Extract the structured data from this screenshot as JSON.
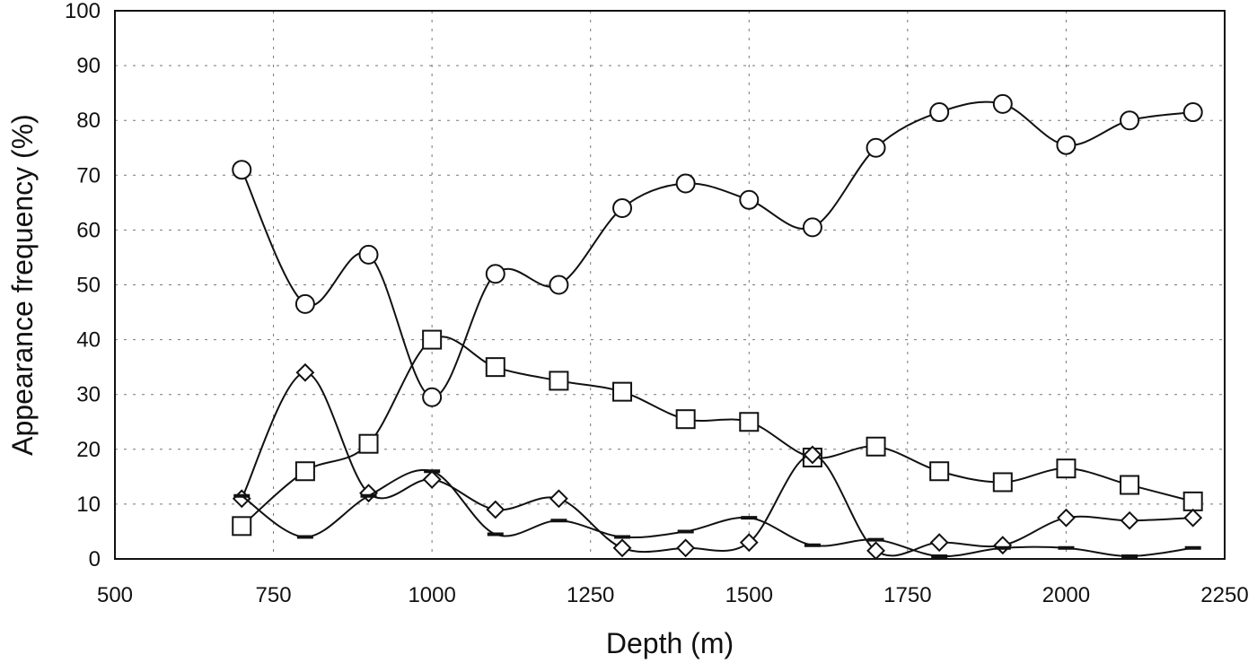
{
  "chart_data": {
    "type": "line",
    "xlabel": "Depth (m)",
    "ylabel": "Appearance frequency (%)",
    "xlim": [
      500,
      2250
    ],
    "ylim": [
      0,
      100
    ],
    "xticks": [
      500,
      750,
      1000,
      1250,
      1500,
      1750,
      2000,
      2250
    ],
    "yticks": [
      0,
      10,
      20,
      30,
      40,
      50,
      60,
      70,
      80,
      90,
      100
    ],
    "grid": true,
    "series": [
      {
        "marker": "circle",
        "x": [
          700,
          800,
          900,
          1000,
          1100,
          1200,
          1300,
          1400,
          1500,
          1600,
          1700,
          1800,
          1900,
          2000,
          2100,
          2200
        ],
        "values": [
          71,
          46.5,
          55.5,
          29.5,
          52,
          50,
          64,
          68.5,
          65.5,
          60.5,
          75,
          81.5,
          83,
          75.5,
          80,
          81.5
        ]
      },
      {
        "marker": "square",
        "x": [
          700,
          800,
          900,
          1000,
          1100,
          1200,
          1300,
          1400,
          1500,
          1600,
          1700,
          1800,
          1900,
          2000,
          2100,
          2200
        ],
        "values": [
          6,
          16,
          21,
          40,
          35,
          32.5,
          30.5,
          25.5,
          25,
          18.5,
          20.5,
          16,
          14,
          16.5,
          13.5,
          10.5
        ]
      },
      {
        "marker": "diamond",
        "x": [
          700,
          800,
          900,
          1000,
          1100,
          1200,
          1300,
          1400,
          1500,
          1600,
          1700,
          1800,
          1900,
          2000,
          2100,
          2200
        ],
        "values": [
          11,
          34,
          12,
          14.5,
          9,
          11,
          2,
          2,
          3,
          19,
          1.5,
          3,
          2.5,
          7.5,
          7,
          7.5
        ]
      },
      {
        "marker": "dash",
        "x": [
          700,
          800,
          900,
          1000,
          1100,
          1200,
          1300,
          1400,
          1500,
          1600,
          1700,
          1800,
          1900,
          2000,
          2100,
          2200
        ],
        "values": [
          11.5,
          4,
          11.5,
          16,
          4.5,
          7,
          4,
          5,
          7.5,
          2.5,
          3.5,
          0.5,
          2,
          2,
          0.5,
          2
        ]
      }
    ]
  }
}
